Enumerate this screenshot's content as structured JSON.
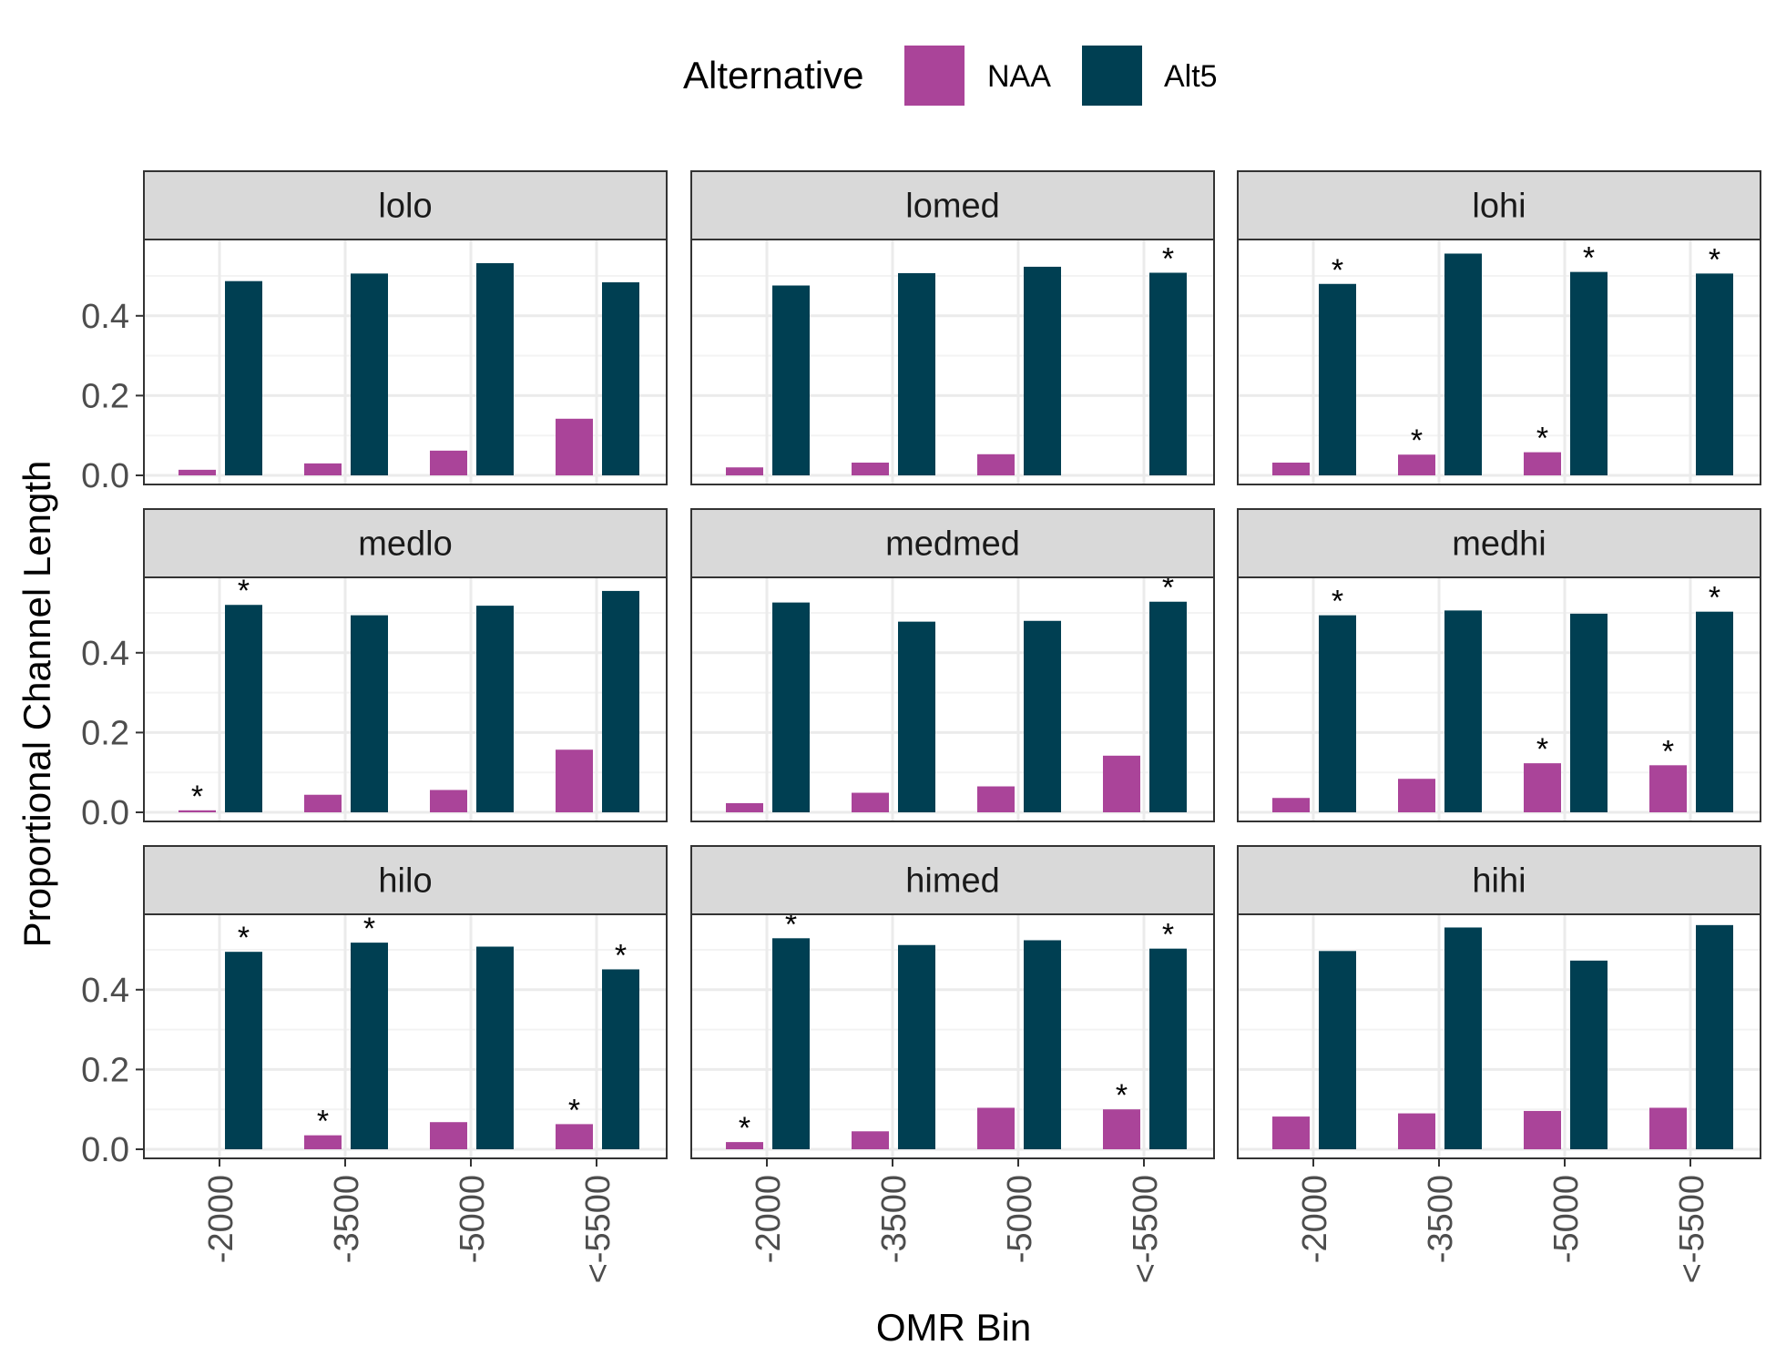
{
  "chart_data": {
    "type": "bar",
    "xlabel": "OMR Bin",
    "ylabel": "Proportional Channel Length",
    "legend_title": "Alternative",
    "legend_position": "top",
    "ylim": [
      0,
      0.58
    ],
    "yticks": [
      "0.0",
      "0.2",
      "0.4"
    ],
    "categories": [
      "-2000",
      "-3500",
      "-5000",
      "<-5500"
    ],
    "series": [
      {
        "name": "NAA",
        "color": "#AA4499"
      },
      {
        "name": "Alt5",
        "color": "#003F52"
      }
    ],
    "panels": [
      {
        "label": "lolo",
        "NAA": [
          0.014,
          0.03,
          0.062,
          0.142
        ],
        "Alt5": [
          0.487,
          0.506,
          0.532,
          0.484
        ],
        "NAA_sig": [
          false,
          false,
          false,
          false
        ],
        "Alt5_sig": [
          false,
          false,
          false,
          false
        ]
      },
      {
        "label": "lomed",
        "NAA": [
          0.02,
          0.032,
          0.053,
          0.0
        ],
        "Alt5": [
          0.476,
          0.507,
          0.523,
          0.508
        ],
        "NAA_sig": [
          false,
          false,
          false,
          false
        ],
        "Alt5_sig": [
          false,
          false,
          false,
          true
        ]
      },
      {
        "label": "lohi",
        "NAA": [
          0.032,
          0.052,
          0.058,
          0.0
        ],
        "Alt5": [
          0.48,
          0.556,
          0.51,
          0.506
        ],
        "NAA_sig": [
          false,
          true,
          true,
          false
        ],
        "Alt5_sig": [
          true,
          false,
          true,
          true
        ]
      },
      {
        "label": "medlo",
        "NAA": [
          0.005,
          0.044,
          0.056,
          0.157
        ],
        "Alt5": [
          0.52,
          0.494,
          0.518,
          0.555
        ],
        "NAA_sig": [
          true,
          false,
          false,
          false
        ],
        "Alt5_sig": [
          true,
          false,
          false,
          false
        ]
      },
      {
        "label": "medmed",
        "NAA": [
          0.023,
          0.049,
          0.065,
          0.142
        ],
        "Alt5": [
          0.526,
          0.478,
          0.48,
          0.528
        ],
        "NAA_sig": [
          false,
          false,
          false,
          false
        ],
        "Alt5_sig": [
          false,
          false,
          false,
          true
        ]
      },
      {
        "label": "medhi",
        "NAA": [
          0.036,
          0.084,
          0.123,
          0.118
        ],
        "Alt5": [
          0.494,
          0.506,
          0.498,
          0.503
        ],
        "NAA_sig": [
          false,
          false,
          true,
          true
        ],
        "Alt5_sig": [
          true,
          false,
          false,
          true
        ]
      },
      {
        "label": "hilo",
        "NAA": [
          0.0,
          0.035,
          0.068,
          0.063
        ],
        "Alt5": [
          0.495,
          0.518,
          0.508,
          0.451
        ],
        "NAA_sig": [
          false,
          true,
          false,
          true
        ],
        "Alt5_sig": [
          true,
          true,
          false,
          true
        ]
      },
      {
        "label": "himed",
        "NAA": [
          0.018,
          0.045,
          0.104,
          0.1
        ],
        "Alt5": [
          0.529,
          0.512,
          0.524,
          0.503
        ],
        "NAA_sig": [
          true,
          false,
          false,
          true
        ],
        "Alt5_sig": [
          true,
          false,
          false,
          true
        ]
      },
      {
        "label": "hihi",
        "NAA": [
          0.082,
          0.09,
          0.096,
          0.104
        ],
        "Alt5": [
          0.497,
          0.556,
          0.473,
          0.562
        ],
        "NAA_sig": [
          false,
          false,
          false,
          false
        ],
        "Alt5_sig": [
          false,
          false,
          false,
          false
        ]
      }
    ],
    "significance_marker": "*",
    "grid": true
  }
}
